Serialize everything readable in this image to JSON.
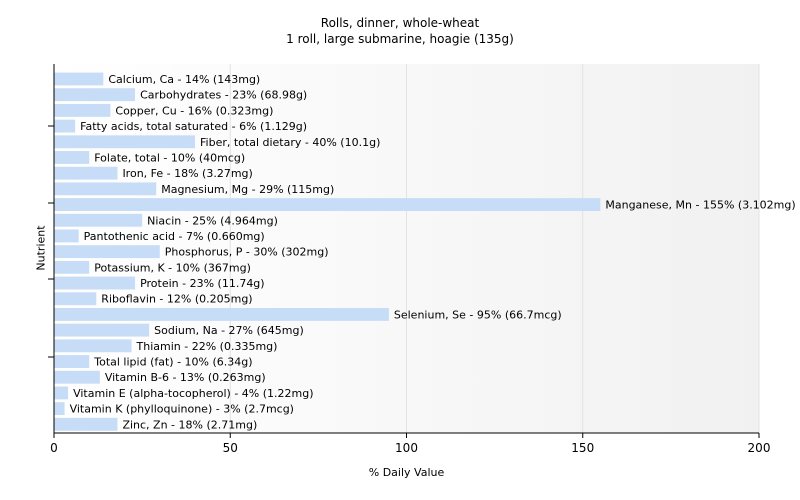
{
  "chart_data": {
    "type": "bar",
    "orientation": "horizontal",
    "title": "Rolls, dinner, whole-wheat",
    "subtitle": "1 roll, large submarine, hoagie (135g)",
    "xlabel": "% Daily Value",
    "ylabel": "Nutrient",
    "xlim": [
      0,
      200
    ],
    "xticks": [
      0,
      50,
      100,
      150,
      200
    ],
    "grid": true,
    "colors": {
      "bar": "#c6dcf7",
      "axis": "#000000",
      "grid": "#e2e2e2"
    },
    "bars": [
      {
        "label": "Calcium, Ca - 14% (143mg)",
        "value": 14
      },
      {
        "label": "Carbohydrates - 23% (68.98g)",
        "value": 23
      },
      {
        "label": "Copper, Cu - 16% (0.323mg)",
        "value": 16
      },
      {
        "label": "Fatty acids, total saturated - 6% (1.129g)",
        "value": 6
      },
      {
        "label": "Fiber, total dietary - 40% (10.1g)",
        "value": 40
      },
      {
        "label": "Folate, total - 10% (40mcg)",
        "value": 10
      },
      {
        "label": "Iron, Fe - 18% (3.27mg)",
        "value": 18
      },
      {
        "label": "Magnesium, Mg - 29% (115mg)",
        "value": 29
      },
      {
        "label": "Manganese, Mn - 155% (3.102mg)",
        "value": 155
      },
      {
        "label": "Niacin - 25% (4.964mg)",
        "value": 25
      },
      {
        "label": "Pantothenic acid - 7% (0.660mg)",
        "value": 7
      },
      {
        "label": "Phosphorus, P - 30% (302mg)",
        "value": 30
      },
      {
        "label": "Potassium, K - 10% (367mg)",
        "value": 10
      },
      {
        "label": "Protein - 23% (11.74g)",
        "value": 23
      },
      {
        "label": "Riboflavin - 12% (0.205mg)",
        "value": 12
      },
      {
        "label": "Selenium, Se - 95% (66.7mcg)",
        "value": 95
      },
      {
        "label": "Sodium, Na - 27% (645mg)",
        "value": 27
      },
      {
        "label": "Thiamin - 22% (0.335mg)",
        "value": 22
      },
      {
        "label": "Total lipid (fat) - 10% (6.34g)",
        "value": 10
      },
      {
        "label": "Vitamin B-6 - 13% (0.263mg)",
        "value": 13
      },
      {
        "label": "Vitamin E (alpha-tocopherol) - 4% (1.22mg)",
        "value": 4
      },
      {
        "label": "Vitamin K (phylloquinone) - 3% (2.7mcg)",
        "value": 3
      },
      {
        "label": "Zinc, Zn - 18% (2.71mg)",
        "value": 18
      }
    ]
  }
}
